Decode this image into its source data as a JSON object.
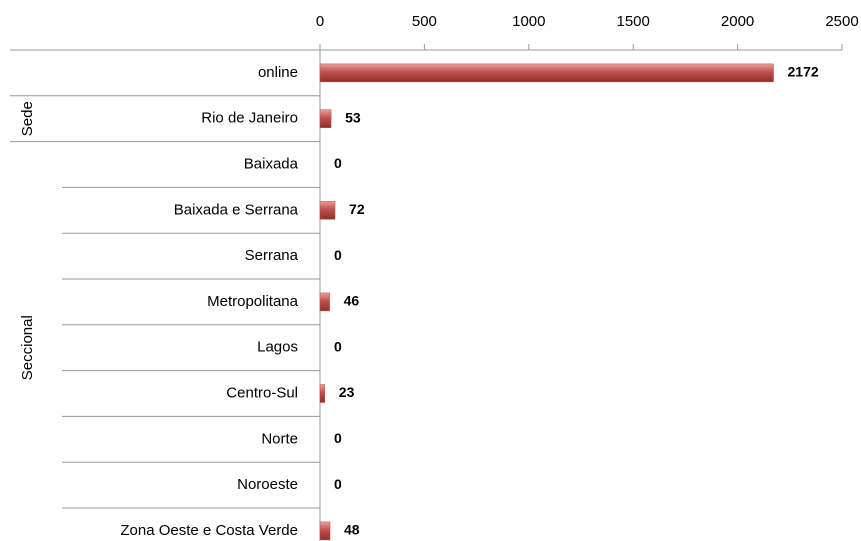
{
  "chart_data": {
    "type": "hbar",
    "categories": [
      "online",
      "Rio de Janeiro",
      "Baixada",
      "Baixada e Serrana",
      "Serrana",
      "Metropolitana",
      "Lagos",
      "Centro-Sul",
      "Norte",
      "Noroeste",
      "Zona Oeste e Costa Verde"
    ],
    "groups": [
      {
        "name": null,
        "size": 1
      },
      {
        "name": "Sede",
        "size": 1
      },
      {
        "name": "Seccional",
        "size": 9
      }
    ],
    "values": [
      2172,
      53,
      0,
      72,
      0,
      46,
      0,
      23,
      0,
      0,
      48
    ],
    "color": "#c0504d",
    "xlim": [
      0,
      2500
    ],
    "xticks": [
      0,
      500,
      1000,
      1500,
      2000,
      2500
    ]
  }
}
